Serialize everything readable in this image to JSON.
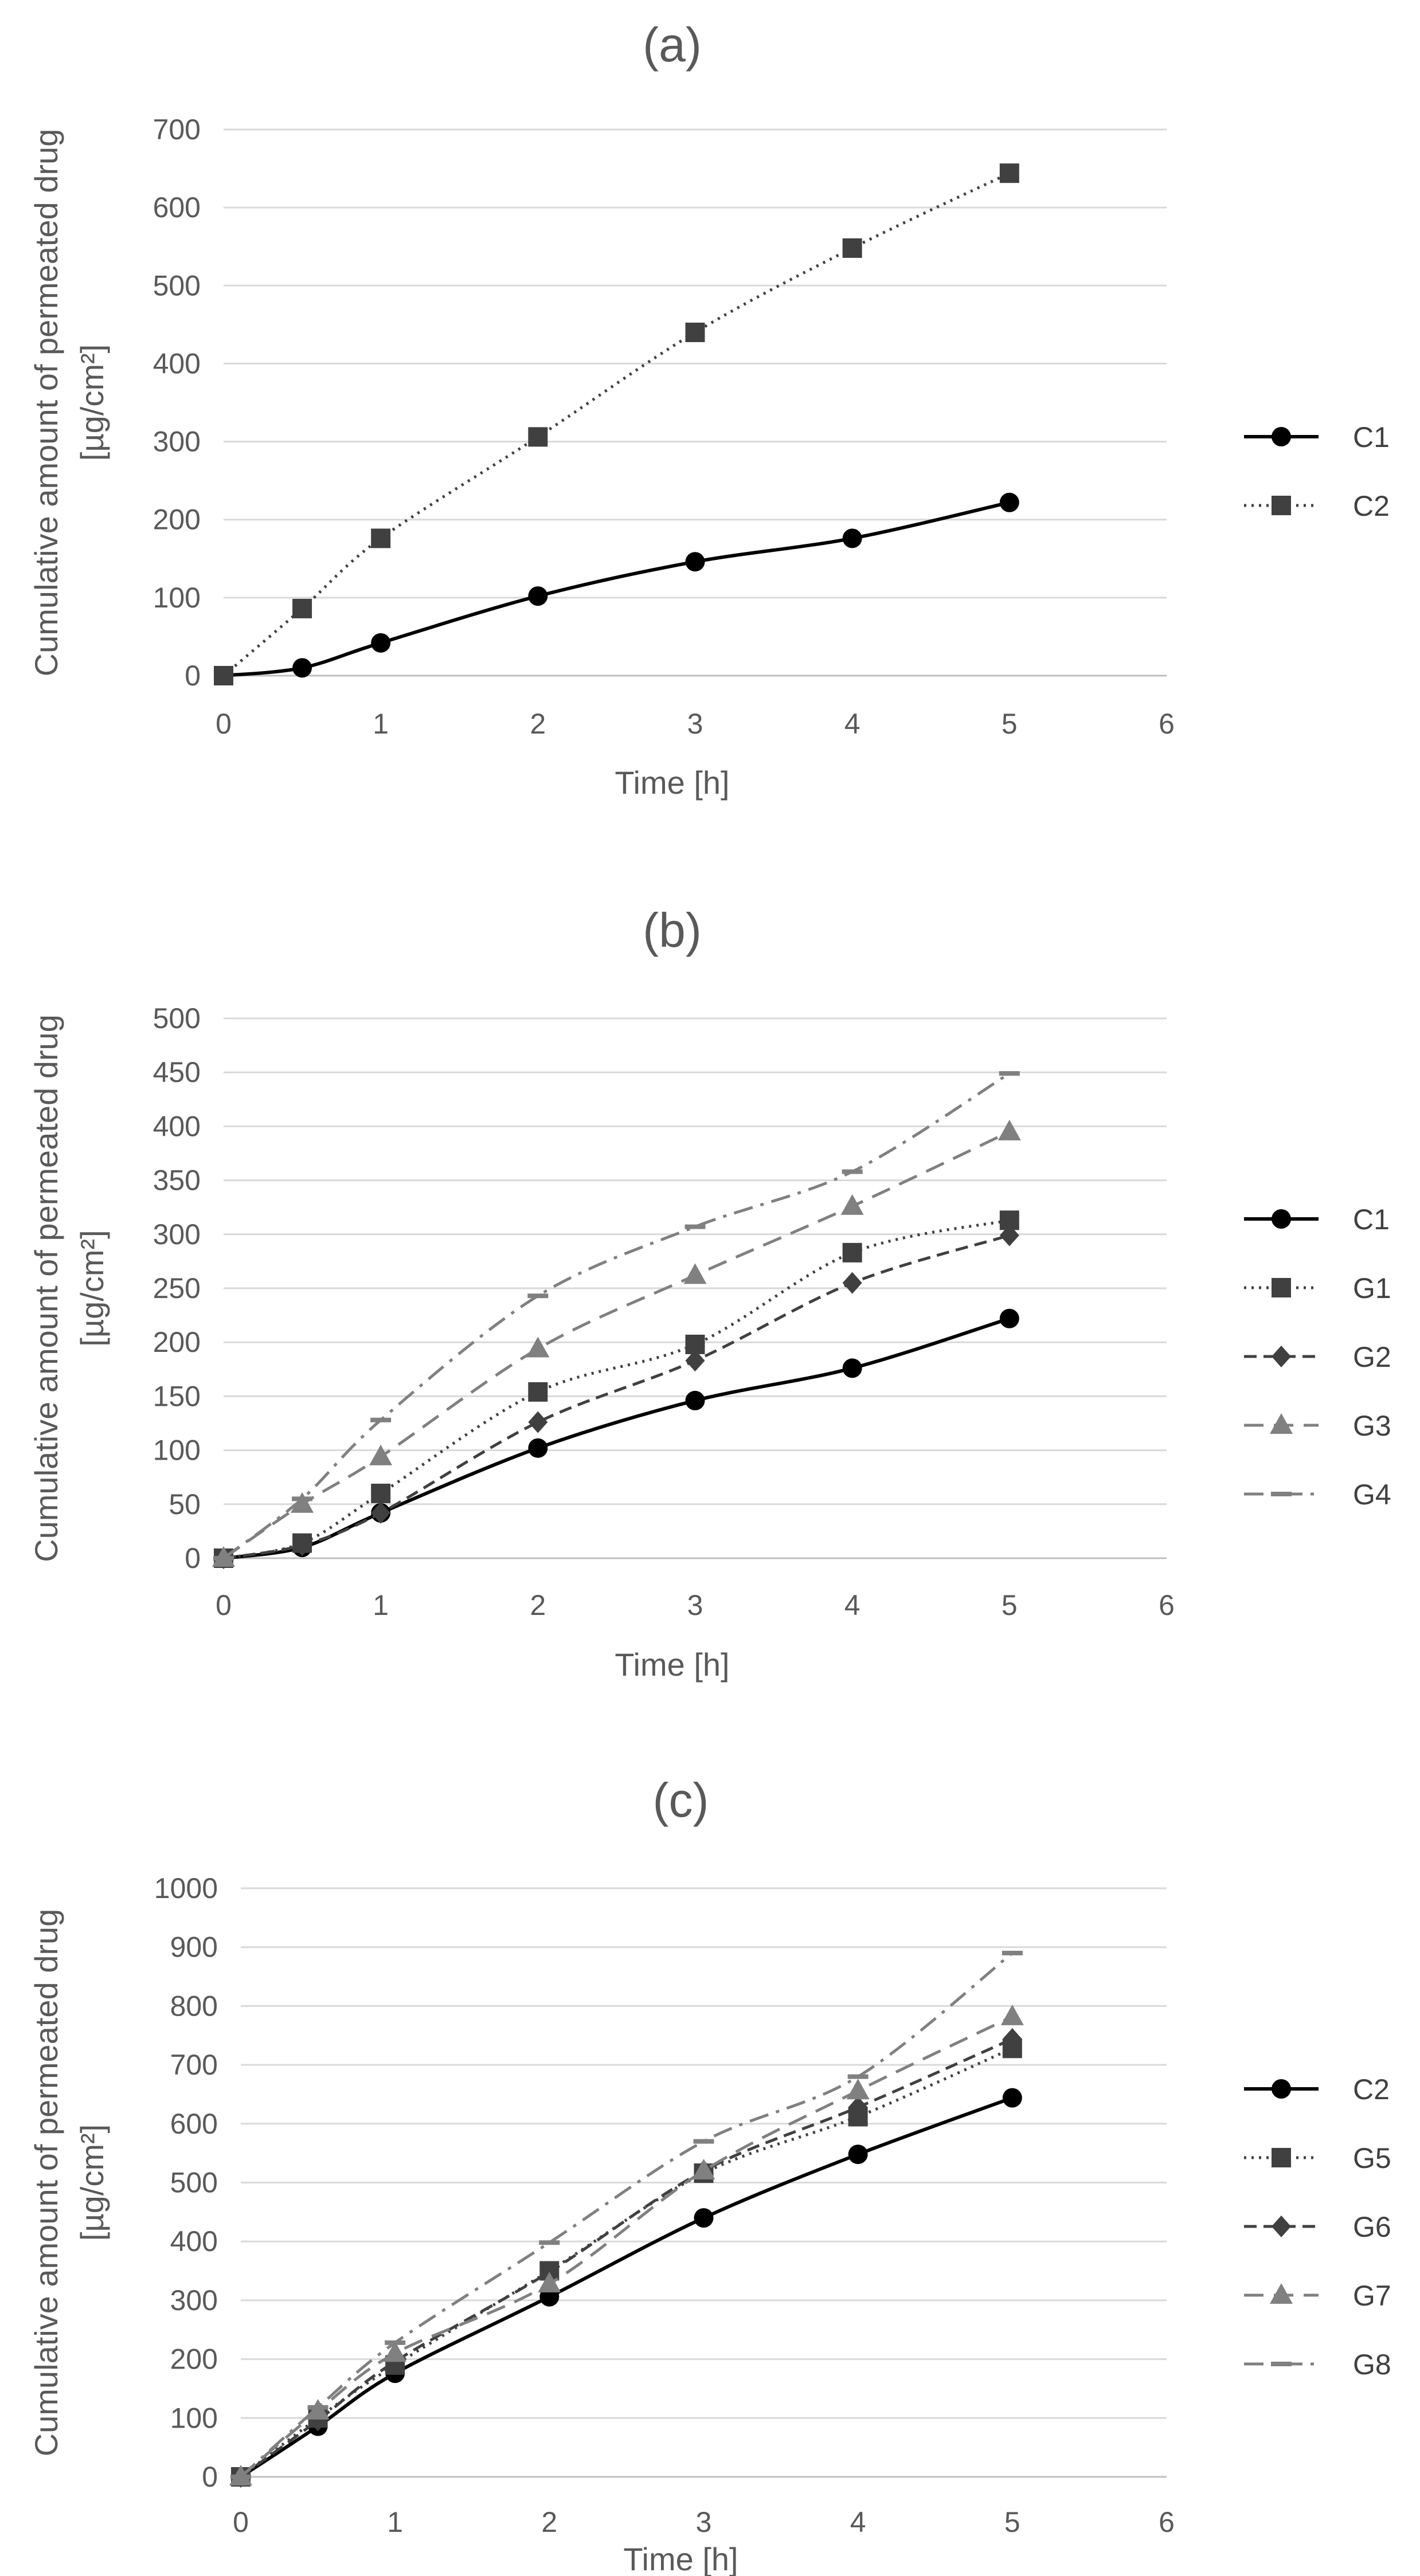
{
  "chart_data": [
    {
      "type": "line",
      "title": "(a)",
      "xlabel": "Time [h]",
      "ylabel": "Cumulative amount of permeated drug",
      "ylabel_unit": "[µg/cm²]",
      "xlim": [
        0,
        6
      ],
      "ylim": [
        0,
        700
      ],
      "xticks": [
        0,
        1,
        2,
        3,
        4,
        5,
        6
      ],
      "yticks": [
        0,
        100,
        200,
        300,
        400,
        500,
        600,
        700
      ],
      "grid": true,
      "legend_position": "right",
      "x": [
        0,
        0.5,
        1,
        2,
        3,
        4,
        5
      ],
      "series": [
        {
          "name": "C1",
          "values": [
            0,
            10,
            42,
            102,
            146,
            176,
            222
          ],
          "color": "#000000",
          "dash": "solid",
          "marker": "circle"
        },
        {
          "name": "C2",
          "values": [
            0,
            86,
            176,
            306,
            440,
            548,
            644
          ],
          "color": "#404040",
          "dash": "dotted",
          "marker": "square"
        }
      ]
    },
    {
      "type": "line",
      "title": "(b)",
      "xlabel": "Time [h]",
      "ylabel": "Cumulative amount of permeated drug",
      "ylabel_unit": "[µg/cm²]",
      "xlim": [
        0,
        6
      ],
      "ylim": [
        0,
        500
      ],
      "xticks": [
        0,
        1,
        2,
        3,
        4,
        5,
        6
      ],
      "yticks": [
        0,
        50,
        100,
        150,
        200,
        250,
        300,
        350,
        400,
        450,
        500
      ],
      "grid": true,
      "legend_position": "right",
      "x": [
        0,
        0.5,
        1,
        2,
        3,
        4,
        5
      ],
      "series": [
        {
          "name": "C1",
          "values": [
            0,
            10,
            42,
            102,
            146,
            176,
            222
          ],
          "color": "#000000",
          "dash": "solid",
          "marker": "circle"
        },
        {
          "name": "G1",
          "values": [
            0,
            14,
            60,
            154,
            198,
            283,
            313
          ],
          "color": "#404040",
          "dash": "dotted",
          "marker": "square"
        },
        {
          "name": "G2",
          "values": [
            0,
            12,
            42,
            126,
            183,
            255,
            299
          ],
          "color": "#404040",
          "dash": "dashed",
          "marker": "diamond"
        },
        {
          "name": "G3",
          "values": [
            0,
            50,
            94,
            194,
            262,
            326,
            395
          ],
          "color": "#808080",
          "dash": "longdash",
          "marker": "triangle"
        },
        {
          "name": "G4",
          "values": [
            0,
            55,
            128,
            243,
            307,
            358,
            449
          ],
          "color": "#808080",
          "dash": "dashdot",
          "marker": "dash"
        }
      ]
    },
    {
      "type": "line",
      "title": "(c)",
      "xlabel": "Time [h]",
      "ylabel": "Cumulative amount of permeated drug",
      "ylabel_unit": "[µg/cm²]",
      "xlim": [
        0,
        6
      ],
      "ylim": [
        0,
        1000
      ],
      "xticks": [
        0,
        1,
        2,
        3,
        4,
        5,
        6
      ],
      "yticks": [
        0,
        100,
        200,
        300,
        400,
        500,
        600,
        700,
        800,
        900,
        1000
      ],
      "grid": true,
      "legend_position": "right",
      "x": [
        0,
        0.5,
        1,
        2,
        3,
        4,
        5
      ],
      "series": [
        {
          "name": "C2",
          "values": [
            0,
            86,
            176,
            306,
            440,
            548,
            644
          ],
          "color": "#000000",
          "dash": "solid",
          "marker": "circle"
        },
        {
          "name": "G5",
          "values": [
            0,
            100,
            190,
            350,
            516,
            612,
            728
          ],
          "color": "#404040",
          "dash": "dotted",
          "marker": "square"
        },
        {
          "name": "G6",
          "values": [
            0,
            96,
            196,
            348,
            520,
            628,
            744
          ],
          "color": "#404040",
          "dash": "dashed",
          "marker": "diamond"
        },
        {
          "name": "G7",
          "values": [
            0,
            112,
            210,
            328,
            520,
            656,
            782
          ],
          "color": "#808080",
          "dash": "longdash",
          "marker": "triangle"
        },
        {
          "name": "G8",
          "values": [
            0,
            118,
            228,
            398,
            570,
            680,
            890
          ],
          "color": "#808080",
          "dash": "dashdot",
          "marker": "dash"
        }
      ]
    }
  ]
}
